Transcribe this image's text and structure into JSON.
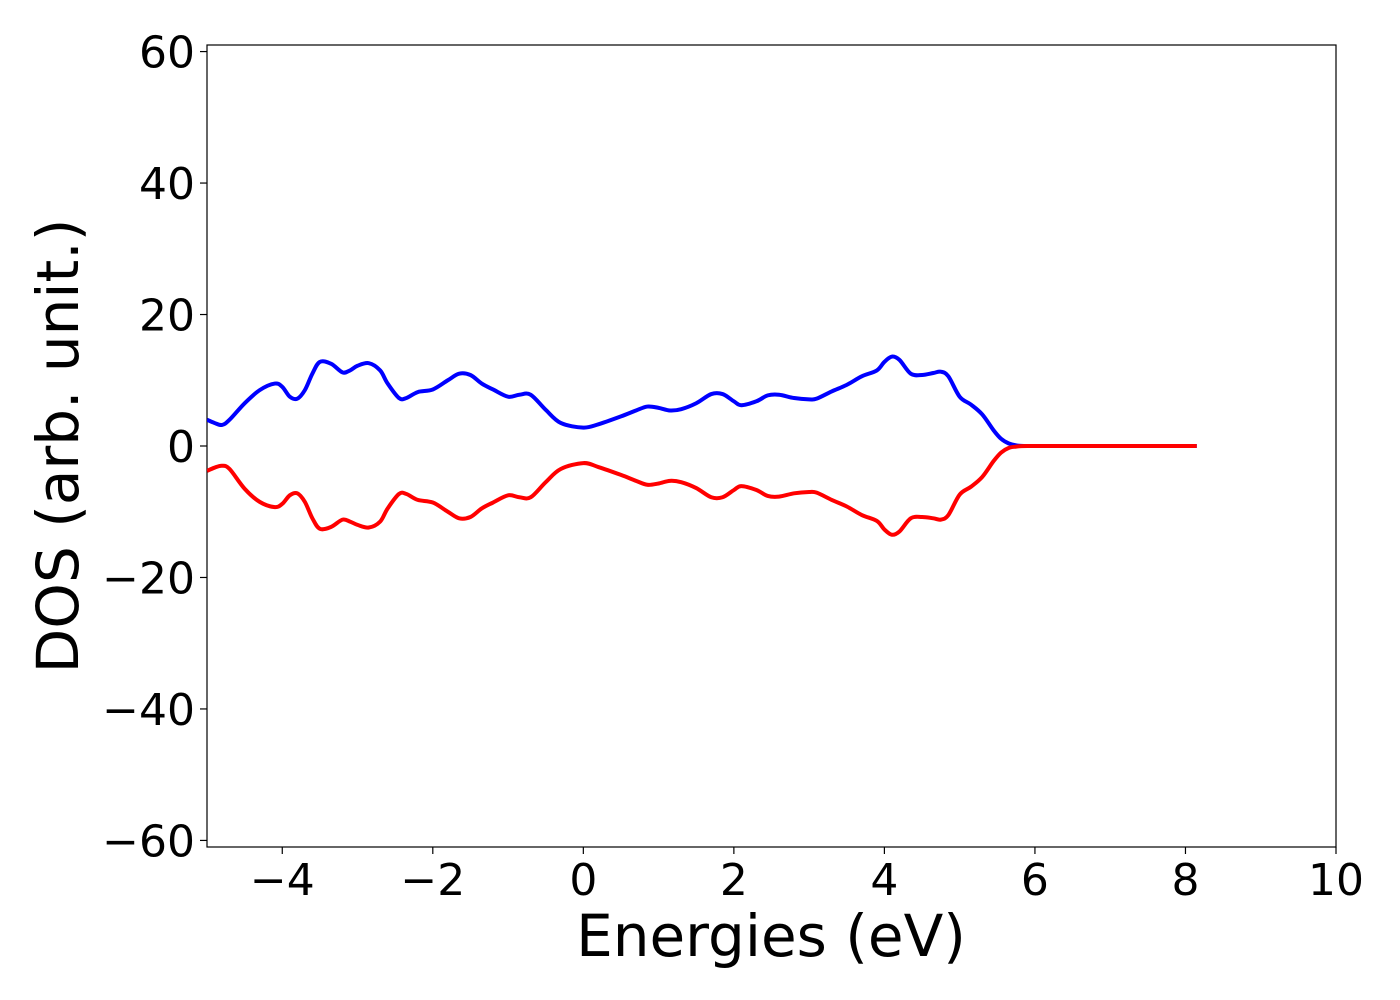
{
  "chart_data": {
    "type": "line",
    "title": "",
    "xlabel": "Energies (eV)",
    "ylabel": "DOS (arb. unit.)",
    "xlim": [
      -5,
      10
    ],
    "ylim": [
      -61,
      61
    ],
    "xticks": [
      -4,
      -2,
      0,
      2,
      4,
      6,
      8,
      10
    ],
    "yticks": [
      -60,
      -40,
      -20,
      0,
      20,
      40,
      60
    ],
    "grid": false,
    "legend": "none",
    "series": [
      {
        "color": "#0000ff",
        "x": [
          -5.0,
          -4.9,
          -4.8,
          -4.7,
          -4.5,
          -4.3,
          -4.1,
          -4.0,
          -3.9,
          -3.8,
          -3.7,
          -3.6,
          -3.5,
          -3.35,
          -3.2,
          -3.1,
          -3.0,
          -2.85,
          -2.7,
          -2.6,
          -2.45,
          -2.35,
          -2.2,
          -2.0,
          -1.8,
          -1.65,
          -1.5,
          -1.35,
          -1.2,
          -1.0,
          -0.85,
          -0.7,
          -0.5,
          -0.3,
          0.0,
          0.2,
          0.5,
          0.7,
          0.85,
          1.0,
          1.15,
          1.3,
          1.5,
          1.7,
          1.85,
          2.0,
          2.1,
          2.3,
          2.45,
          2.6,
          2.8,
          3.0,
          3.1,
          3.3,
          3.5,
          3.7,
          3.9,
          4.0,
          4.1,
          4.2,
          4.35,
          4.5,
          4.65,
          4.75,
          4.85,
          5.0,
          5.15,
          5.3,
          5.45,
          5.55,
          5.65,
          5.75,
          5.9,
          6.5,
          7.5,
          8.15
        ],
        "y": [
          4.0,
          3.5,
          3.2,
          4.0,
          6.5,
          8.5,
          9.5,
          9.0,
          7.5,
          7.2,
          8.5,
          11.0,
          12.8,
          12.5,
          11.2,
          11.5,
          12.2,
          12.6,
          11.5,
          9.5,
          7.3,
          7.3,
          8.2,
          8.6,
          10.0,
          11.0,
          10.8,
          9.5,
          8.6,
          7.5,
          7.8,
          7.8,
          5.5,
          3.5,
          2.8,
          3.3,
          4.5,
          5.4,
          6.0,
          5.8,
          5.4,
          5.6,
          6.5,
          7.9,
          7.9,
          6.8,
          6.2,
          6.8,
          7.7,
          7.8,
          7.3,
          7.1,
          7.2,
          8.3,
          9.3,
          10.6,
          11.5,
          12.8,
          13.6,
          13.1,
          11.0,
          10.8,
          11.1,
          11.3,
          10.6,
          7.5,
          6.3,
          4.8,
          2.4,
          1.1,
          0.4,
          0.1,
          0.0,
          0.0,
          0.0,
          0.0
        ]
      },
      {
        "color": "#ff0000",
        "x": [
          -5.0,
          -4.9,
          -4.8,
          -4.7,
          -4.5,
          -4.3,
          -4.1,
          -4.0,
          -3.9,
          -3.8,
          -3.7,
          -3.6,
          -3.5,
          -3.35,
          -3.2,
          -3.1,
          -3.0,
          -2.85,
          -2.7,
          -2.6,
          -2.45,
          -2.35,
          -2.2,
          -2.0,
          -1.8,
          -1.65,
          -1.5,
          -1.35,
          -1.2,
          -1.0,
          -0.85,
          -0.7,
          -0.5,
          -0.3,
          0.0,
          0.2,
          0.5,
          0.7,
          0.85,
          1.0,
          1.15,
          1.3,
          1.5,
          1.7,
          1.85,
          2.0,
          2.1,
          2.3,
          2.45,
          2.6,
          2.8,
          3.0,
          3.1,
          3.3,
          3.5,
          3.7,
          3.9,
          4.0,
          4.1,
          4.2,
          4.35,
          4.5,
          4.65,
          4.75,
          4.85,
          5.0,
          5.15,
          5.3,
          5.45,
          5.55,
          5.65,
          5.75,
          5.9,
          6.5,
          7.5,
          8.15
        ],
        "y": [
          -3.8,
          -3.3,
          -3.0,
          -3.5,
          -6.5,
          -8.5,
          -9.3,
          -8.8,
          -7.5,
          -7.2,
          -8.5,
          -11.0,
          -12.6,
          -12.3,
          -11.2,
          -11.5,
          -12.0,
          -12.4,
          -11.5,
          -9.5,
          -7.3,
          -7.3,
          -8.2,
          -8.6,
          -10.0,
          -11.0,
          -10.8,
          -9.5,
          -8.6,
          -7.5,
          -7.8,
          -7.8,
          -5.5,
          -3.5,
          -2.6,
          -3.2,
          -4.4,
          -5.3,
          -5.9,
          -5.7,
          -5.3,
          -5.5,
          -6.4,
          -7.8,
          -7.8,
          -6.7,
          -6.1,
          -6.7,
          -7.6,
          -7.7,
          -7.2,
          -7.0,
          -7.1,
          -8.2,
          -9.2,
          -10.5,
          -11.4,
          -12.7,
          -13.5,
          -13.0,
          -11.0,
          -10.8,
          -11.0,
          -11.2,
          -10.5,
          -7.4,
          -6.2,
          -4.7,
          -2.3,
          -1.0,
          -0.3,
          -0.1,
          0.0,
          0.0,
          0.0,
          0.0
        ]
      }
    ]
  }
}
